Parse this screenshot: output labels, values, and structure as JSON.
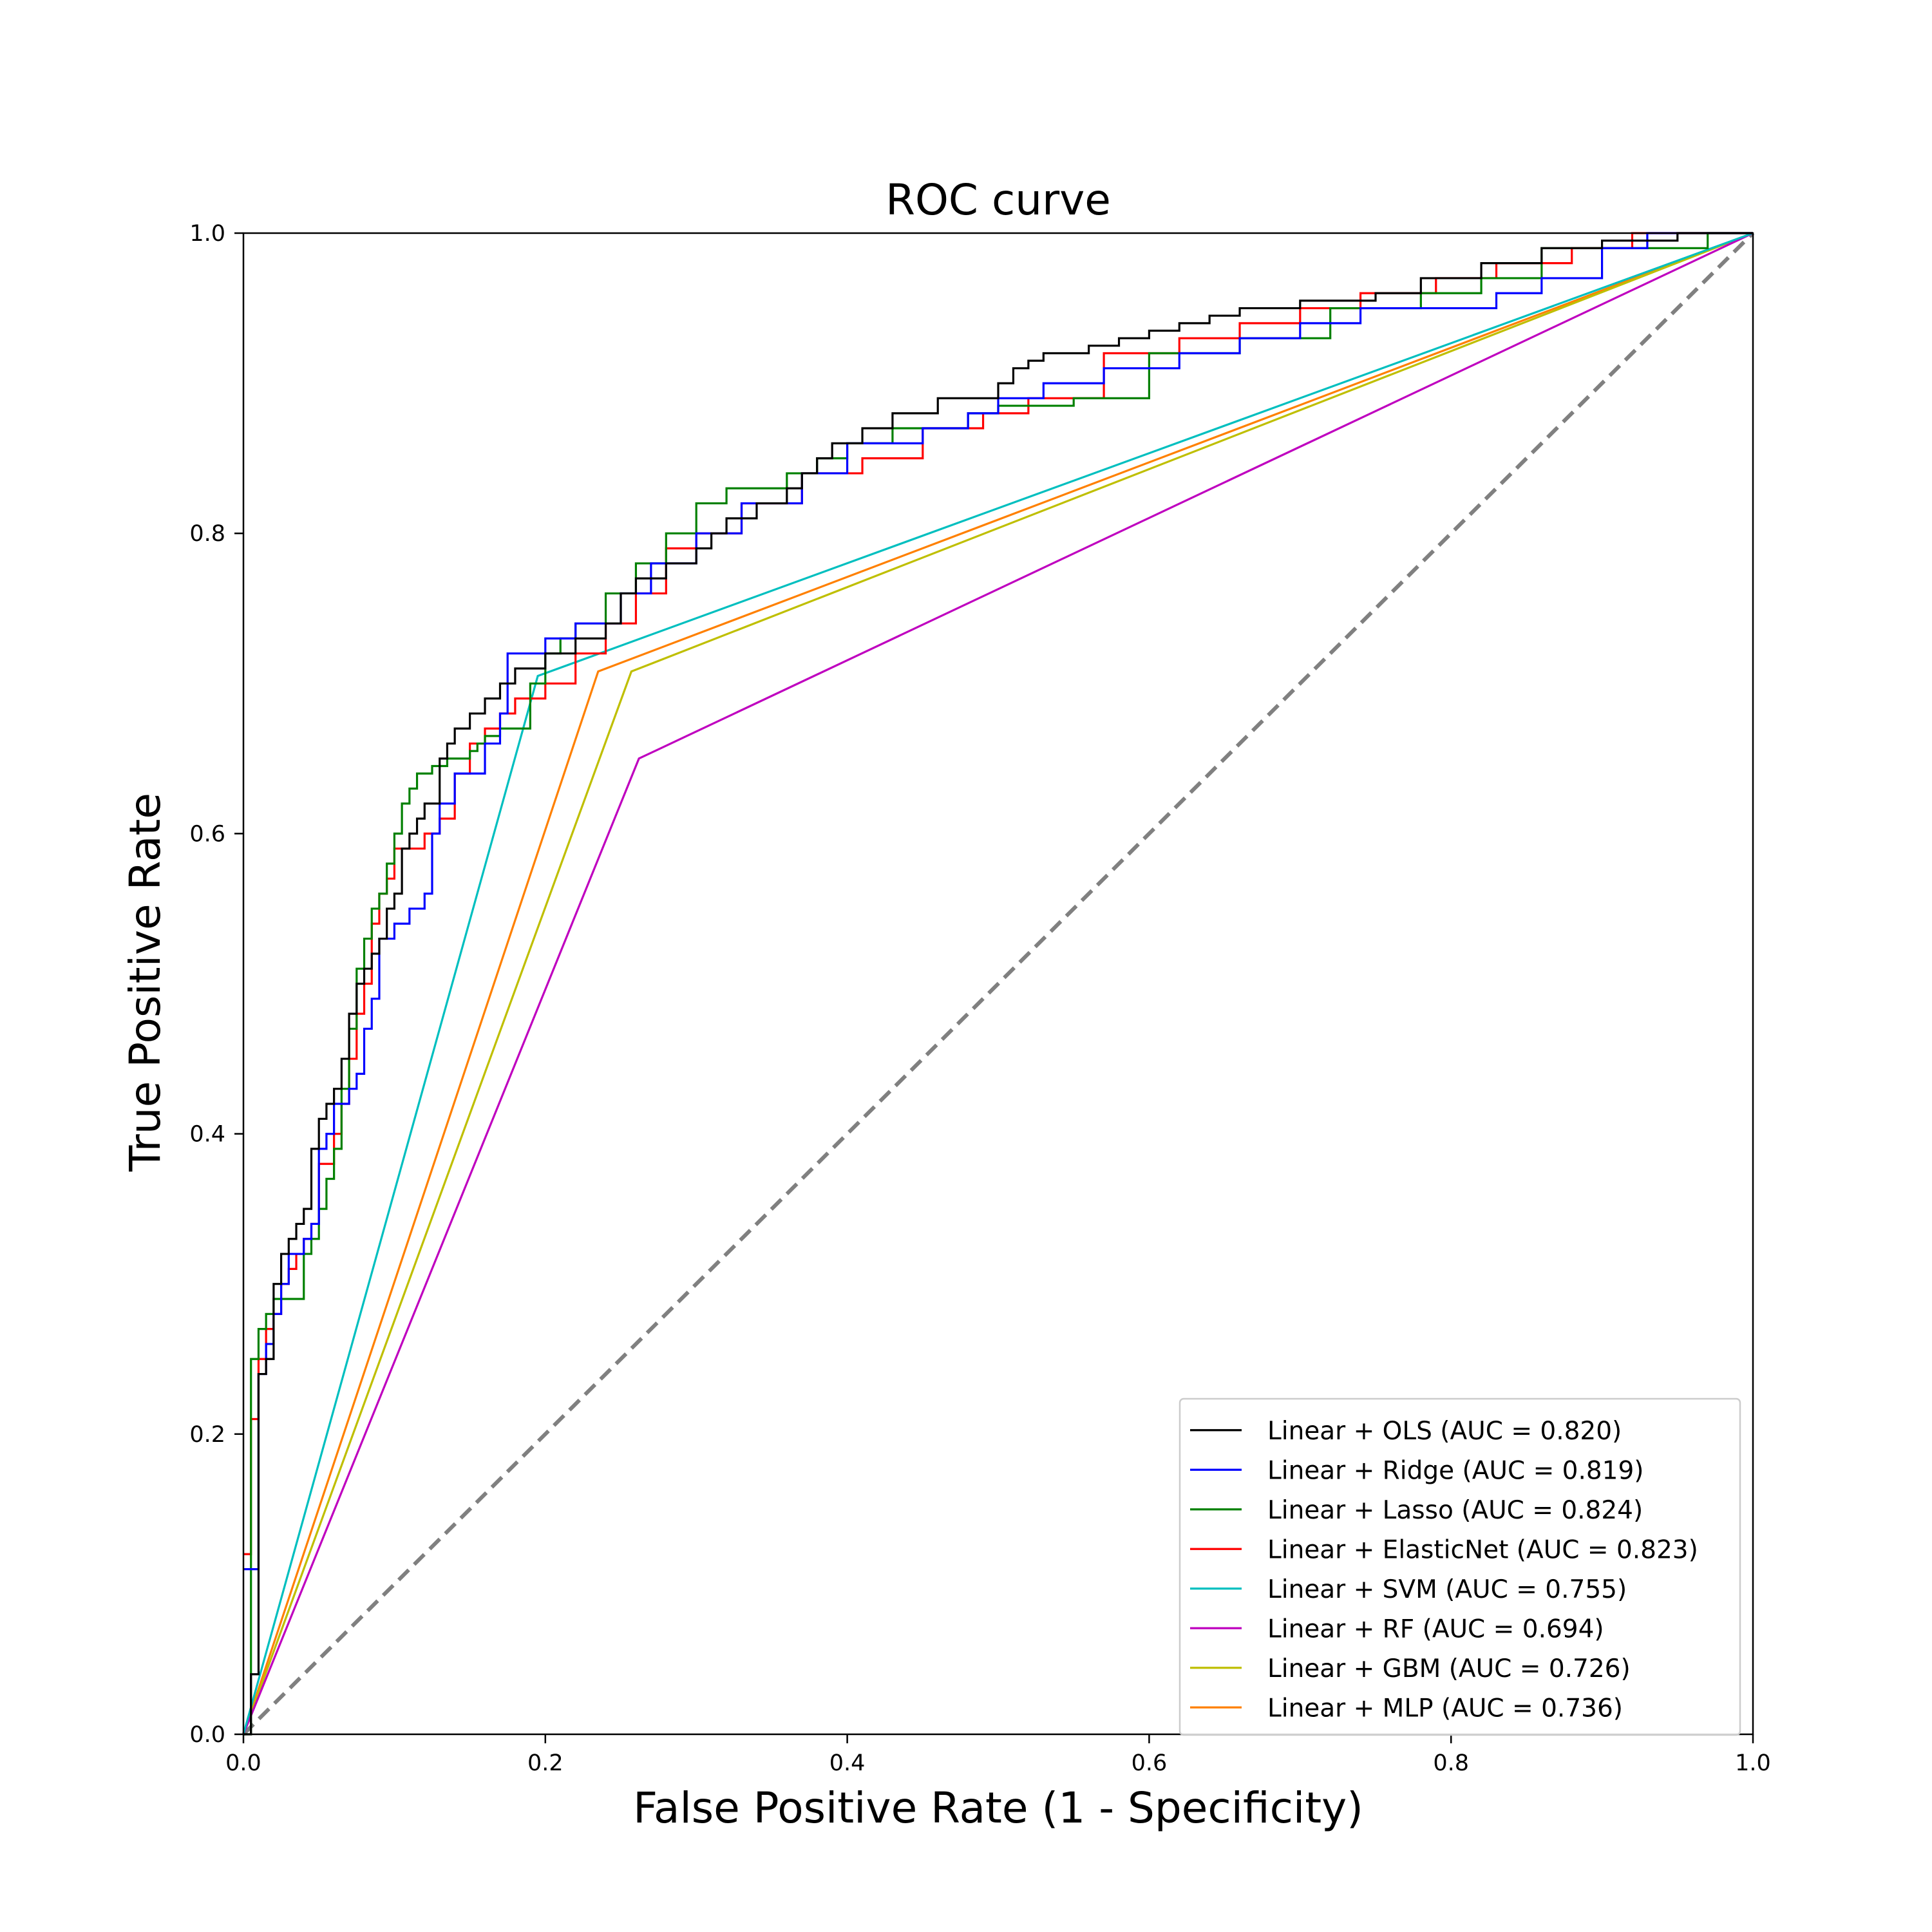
{
  "chart_data": {
    "type": "line",
    "title": "ROC curve",
    "xlabel": "False Positive Rate (1 - Specificity)",
    "ylabel": "True Positive Rate",
    "xlim": [
      0,
      1
    ],
    "ylim": [
      0,
      1
    ],
    "xticks": [
      "0.0",
      "0.2",
      "0.4",
      "0.6",
      "0.8",
      "1.0"
    ],
    "yticks": [
      "0.0",
      "0.2",
      "0.4",
      "0.6",
      "0.8",
      "1.0"
    ],
    "grid": false,
    "legend_position": "lower-right",
    "reference_line": {
      "x": [
        0,
        1
      ],
      "y": [
        0,
        1
      ],
      "color": "#808080",
      "style": "dashed"
    },
    "series": [
      {
        "name": "Linear + OLS (AUC = 0.820)",
        "color": "#000000",
        "step": true,
        "x": [
          0,
          0.005,
          0.01,
          0.015,
          0.02,
          0.025,
          0.03,
          0.035,
          0.04,
          0.045,
          0.05,
          0.055,
          0.06,
          0.065,
          0.07,
          0.075,
          0.08,
          0.085,
          0.09,
          0.095,
          0.1,
          0.105,
          0.11,
          0.115,
          0.12,
          0.13,
          0.135,
          0.14,
          0.15,
          0.16,
          0.17,
          0.18,
          0.2,
          0.22,
          0.24,
          0.25,
          0.26,
          0.28,
          0.3,
          0.31,
          0.32,
          0.34,
          0.36,
          0.37,
          0.38,
          0.39,
          0.41,
          0.43,
          0.46,
          0.5,
          0.51,
          0.52,
          0.53,
          0.56,
          0.58,
          0.6,
          0.62,
          0.64,
          0.66,
          0.7,
          0.75,
          0.78,
          0.82,
          0.86,
          0.9,
          0.95,
          1.0
        ],
        "y": [
          0,
          0.04,
          0.24,
          0.25,
          0.3,
          0.32,
          0.33,
          0.34,
          0.35,
          0.39,
          0.41,
          0.42,
          0.43,
          0.45,
          0.48,
          0.5,
          0.51,
          0.52,
          0.53,
          0.55,
          0.56,
          0.59,
          0.6,
          0.61,
          0.62,
          0.65,
          0.66,
          0.67,
          0.68,
          0.69,
          0.7,
          0.71,
          0.72,
          0.73,
          0.74,
          0.76,
          0.77,
          0.78,
          0.79,
          0.8,
          0.81,
          0.82,
          0.83,
          0.84,
          0.85,
          0.86,
          0.87,
          0.88,
          0.89,
          0.9,
          0.91,
          0.915,
          0.92,
          0.925,
          0.93,
          0.935,
          0.94,
          0.945,
          0.95,
          0.955,
          0.96,
          0.97,
          0.98,
          0.99,
          0.995,
          1.0,
          1.0
        ]
      },
      {
        "name": "Linear + Ridge (AUC = 0.819)",
        "color": "#0000ff",
        "step": true,
        "x": [
          0,
          0.01,
          0.015,
          0.02,
          0.025,
          0.03,
          0.04,
          0.045,
          0.05,
          0.055,
          0.06,
          0.07,
          0.075,
          0.08,
          0.085,
          0.09,
          0.1,
          0.11,
          0.12,
          0.125,
          0.13,
          0.14,
          0.16,
          0.17,
          0.175,
          0.2,
          0.22,
          0.25,
          0.27,
          0.3,
          0.33,
          0.37,
          0.4,
          0.45,
          0.48,
          0.5,
          0.53,
          0.57,
          0.62,
          0.66,
          0.7,
          0.74,
          0.79,
          0.83,
          0.86,
          0.9,
          0.93,
          1.0
        ],
        "y": [
          0.11,
          0.24,
          0.26,
          0.28,
          0.3,
          0.32,
          0.33,
          0.34,
          0.39,
          0.4,
          0.42,
          0.43,
          0.44,
          0.47,
          0.49,
          0.53,
          0.54,
          0.55,
          0.56,
          0.6,
          0.62,
          0.64,
          0.66,
          0.68,
          0.72,
          0.73,
          0.74,
          0.76,
          0.78,
          0.8,
          0.82,
          0.84,
          0.86,
          0.87,
          0.88,
          0.89,
          0.9,
          0.91,
          0.92,
          0.93,
          0.94,
          0.95,
          0.95,
          0.96,
          0.97,
          0.99,
          1.0,
          1.0
        ]
      },
      {
        "name": "Linear + Lasso (AUC = 0.824)",
        "color": "#008000",
        "step": true,
        "x": [
          0,
          0.005,
          0.01,
          0.015,
          0.02,
          0.025,
          0.03,
          0.04,
          0.045,
          0.05,
          0.055,
          0.06,
          0.065,
          0.07,
          0.075,
          0.08,
          0.085,
          0.09,
          0.095,
          0.1,
          0.105,
          0.11,
          0.115,
          0.125,
          0.135,
          0.145,
          0.15,
          0.155,
          0.16,
          0.17,
          0.18,
          0.19,
          0.2,
          0.21,
          0.22,
          0.24,
          0.26,
          0.28,
          0.3,
          0.32,
          0.36,
          0.38,
          0.4,
          0.43,
          0.48,
          0.5,
          0.55,
          0.6,
          0.66,
          0.72,
          0.78,
          0.82,
          0.86,
          0.9,
          0.93,
          0.97,
          1.0
        ],
        "y": [
          0,
          0.25,
          0.27,
          0.28,
          0.29,
          0.29,
          0.29,
          0.32,
          0.33,
          0.35,
          0.37,
          0.39,
          0.43,
          0.47,
          0.51,
          0.53,
          0.55,
          0.56,
          0.58,
          0.6,
          0.62,
          0.63,
          0.64,
          0.645,
          0.65,
          0.65,
          0.655,
          0.66,
          0.665,
          0.67,
          0.67,
          0.7,
          0.72,
          0.73,
          0.74,
          0.76,
          0.78,
          0.8,
          0.82,
          0.83,
          0.84,
          0.85,
          0.86,
          0.87,
          0.88,
          0.885,
          0.89,
          0.92,
          0.93,
          0.95,
          0.96,
          0.97,
          0.99,
          0.99,
          0.99,
          1.0,
          1.0
        ]
      },
      {
        "name": "Linear + ElasticNet (AUC = 0.823)",
        "color": "#ff0000",
        "step": true,
        "x": [
          0,
          0.005,
          0.01,
          0.015,
          0.02,
          0.025,
          0.03,
          0.035,
          0.04,
          0.045,
          0.05,
          0.06,
          0.065,
          0.07,
          0.075,
          0.08,
          0.085,
          0.09,
          0.095,
          0.1,
          0.12,
          0.13,
          0.14,
          0.15,
          0.16,
          0.17,
          0.18,
          0.2,
          0.22,
          0.24,
          0.26,
          0.28,
          0.3,
          0.33,
          0.37,
          0.41,
          0.45,
          0.49,
          0.52,
          0.57,
          0.62,
          0.66,
          0.7,
          0.74,
          0.79,
          0.83,
          0.88,
          0.92,
          1.0
        ],
        "y": [
          0.12,
          0.21,
          0.25,
          0.27,
          0.28,
          0.3,
          0.31,
          0.32,
          0.33,
          0.34,
          0.38,
          0.4,
          0.42,
          0.45,
          0.48,
          0.5,
          0.54,
          0.56,
          0.57,
          0.59,
          0.6,
          0.61,
          0.64,
          0.66,
          0.67,
          0.68,
          0.69,
          0.7,
          0.72,
          0.74,
          0.76,
          0.79,
          0.8,
          0.82,
          0.84,
          0.85,
          0.87,
          0.88,
          0.89,
          0.92,
          0.93,
          0.94,
          0.95,
          0.96,
          0.97,
          0.98,
          0.99,
          1.0,
          1.0
        ]
      },
      {
        "name": "Linear + SVM (AUC = 0.755)",
        "color": "#00bfbf",
        "step": false,
        "x": [
          0,
          0.195,
          1.0
        ],
        "y": [
          0,
          0.705,
          1.0
        ]
      },
      {
        "name": "Linear + RF (AUC = 0.694)",
        "color": "#bf00bf",
        "step": false,
        "x": [
          0,
          0.262,
          1.0
        ],
        "y": [
          0,
          0.65,
          1.0
        ]
      },
      {
        "name": "Linear + GBM (AUC = 0.726)",
        "color": "#bfbf00",
        "step": false,
        "x": [
          0,
          0.257,
          1.0
        ],
        "y": [
          0,
          0.708,
          1.0
        ]
      },
      {
        "name": "Linear + MLP (AUC = 0.736)",
        "color": "#ff8000",
        "step": false,
        "x": [
          0,
          0.235,
          1.0
        ],
        "y": [
          0,
          0.708,
          1.0
        ]
      }
    ]
  }
}
